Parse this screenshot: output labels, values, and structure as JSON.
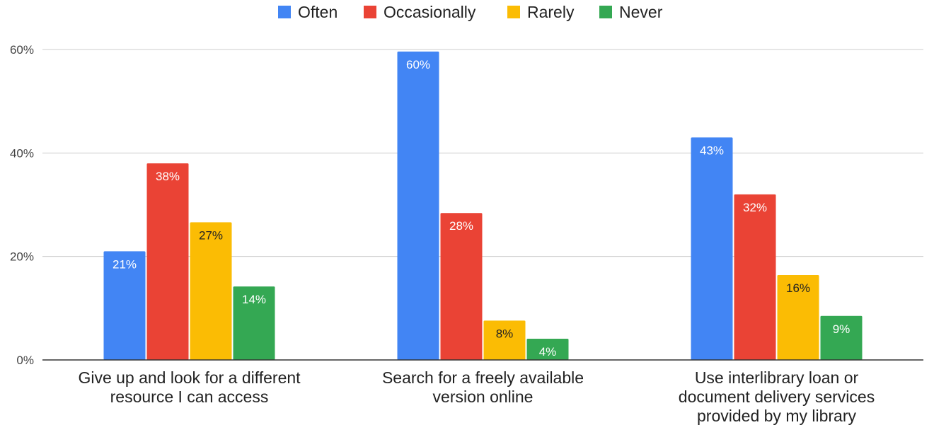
{
  "chart_data": {
    "type": "bar",
    "title": "",
    "xlabel": "",
    "ylabel": "",
    "ylim": [
      0,
      60
    ],
    "y_ticks": [
      {
        "value": 0,
        "label": "0%"
      },
      {
        "value": 20,
        "label": "20%"
      },
      {
        "value": 40,
        "label": "40%"
      },
      {
        "value": 60,
        "label": "60%"
      }
    ],
    "grid": true,
    "legend_position": "top",
    "categories": [
      [
        "Give up and look for a different",
        "resource I can access"
      ],
      [
        "Search for a freely available",
        "version online"
      ],
      [
        "Use interlibrary loan or",
        "document delivery services",
        "provided by my library"
      ]
    ],
    "series": [
      {
        "name": "Often",
        "color": "#4285F4",
        "label_color": "#ffffff",
        "values": [
          21,
          59.6,
          43
        ],
        "labels": [
          "21%",
          "60%",
          "43%"
        ]
      },
      {
        "name": "Occasionally",
        "color": "#EA4335",
        "label_color": "#ffffff",
        "values": [
          38,
          28.4,
          32
        ],
        "labels": [
          "38%",
          "28%",
          "32%"
        ]
      },
      {
        "name": "Rarely",
        "color": "#FBBC04",
        "label_color": "#222222",
        "values": [
          26.6,
          7.6,
          16.4
        ],
        "labels": [
          "27%",
          "8%",
          "16%"
        ]
      },
      {
        "name": "Never",
        "color": "#34A853",
        "label_color": "#ffffff",
        "values": [
          14.2,
          4.1,
          8.5
        ],
        "labels": [
          "14%",
          "4%",
          "9%"
        ]
      }
    ]
  }
}
